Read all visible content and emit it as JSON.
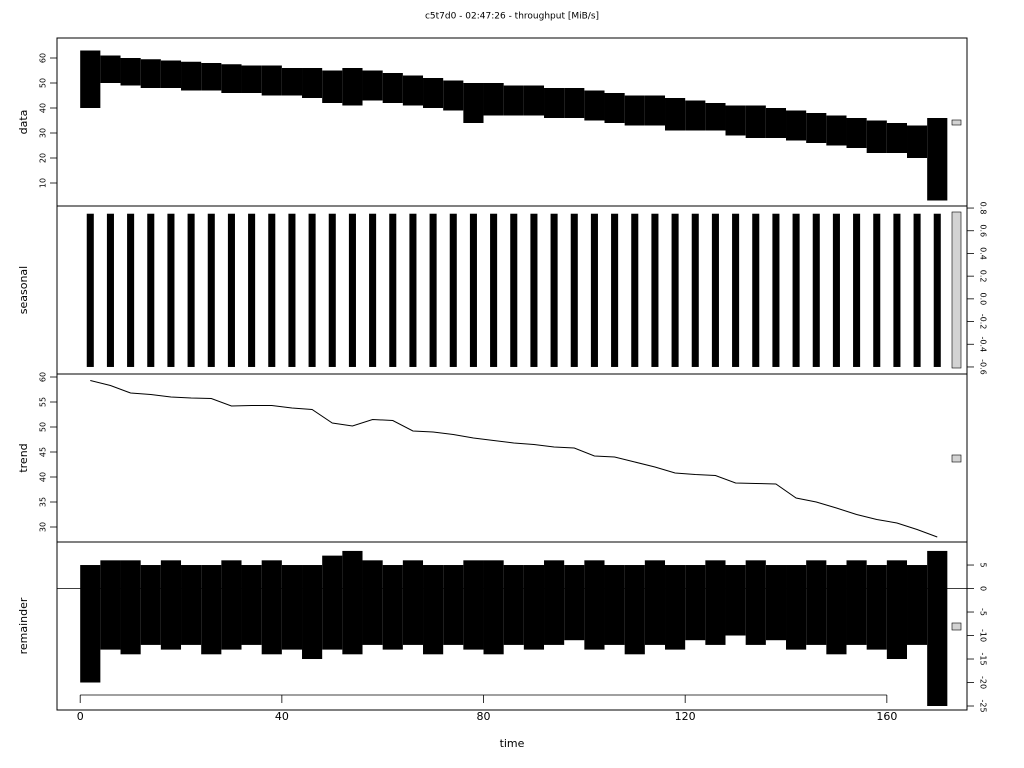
{
  "chart_data": [
    {
      "type": "range",
      "title": "c5t7d0 - 02:47:26 - throughput [MiB/s]",
      "ylabel": "data",
      "yaxis_side": "left",
      "x": [
        2,
        6,
        10,
        14,
        18,
        22,
        26,
        30,
        34,
        38,
        42,
        46,
        50,
        54,
        58,
        62,
        66,
        70,
        74,
        78,
        82,
        86,
        90,
        94,
        98,
        102,
        106,
        110,
        114,
        118,
        122,
        126,
        130,
        134,
        138,
        142,
        146,
        150,
        154,
        158,
        162,
        166,
        170
      ],
      "low": [
        40,
        50,
        49,
        48,
        48,
        47,
        47,
        46,
        46,
        45,
        45,
        44,
        42,
        41,
        43,
        42,
        41,
        40,
        39,
        34,
        37,
        37,
        37,
        36,
        36,
        35,
        34,
        33,
        33,
        31,
        31,
        31,
        29,
        28,
        28,
        27,
        26,
        25,
        24,
        22,
        22,
        20,
        3
      ],
      "high": [
        63,
        61,
        60,
        59.5,
        59,
        58.5,
        58,
        57.5,
        57,
        57,
        56,
        56,
        55,
        56,
        55,
        54,
        53,
        52,
        51,
        50,
        50,
        49,
        49,
        48,
        48,
        47,
        46,
        45,
        45,
        44,
        43,
        42,
        41,
        41,
        40,
        39,
        38,
        37,
        36,
        35,
        34,
        33,
        36
      ],
      "color": "#000000",
      "xlim": [
        -4.6,
        175.9
      ],
      "ylim": [
        0.8,
        68
      ],
      "yticks": [
        10,
        20,
        30,
        40,
        50,
        60
      ]
    },
    {
      "type": "range",
      "ylabel": "seasonal",
      "yaxis_side": "right",
      "x": [
        2,
        6,
        10,
        14,
        18,
        22,
        26,
        30,
        34,
        38,
        42,
        46,
        50,
        54,
        58,
        62,
        66,
        70,
        74,
        78,
        82,
        86,
        90,
        94,
        98,
        102,
        106,
        110,
        114,
        118,
        122,
        126,
        130,
        134,
        138,
        142,
        146,
        150,
        154,
        158,
        162,
        166,
        170
      ],
      "low": [
        -0.6,
        -0.6,
        -0.6,
        -0.6,
        -0.6,
        -0.6,
        -0.6,
        -0.6,
        -0.6,
        -0.6,
        -0.6,
        -0.6,
        -0.6,
        -0.6,
        -0.6,
        -0.6,
        -0.6,
        -0.6,
        -0.6,
        -0.6,
        -0.6,
        -0.6,
        -0.6,
        -0.6,
        -0.6,
        -0.6,
        -0.6,
        -0.6,
        -0.6,
        -0.6,
        -0.6,
        -0.6,
        -0.6,
        -0.6,
        -0.6,
        -0.6,
        -0.6,
        -0.6,
        -0.6,
        -0.6,
        -0.6,
        -0.6,
        -0.6
      ],
      "high": [
        0.75,
        0.75,
        0.75,
        0.75,
        0.75,
        0.75,
        0.75,
        0.75,
        0.75,
        0.75,
        0.75,
        0.75,
        0.75,
        0.75,
        0.75,
        0.75,
        0.75,
        0.75,
        0.75,
        0.75,
        0.75,
        0.75,
        0.75,
        0.75,
        0.75,
        0.75,
        0.75,
        0.75,
        0.75,
        0.75,
        0.75,
        0.75,
        0.75,
        0.75,
        0.75,
        0.75,
        0.75,
        0.75,
        0.75,
        0.75,
        0.75,
        0.75,
        0.75
      ],
      "color": "#000000",
      "xlim": [
        -4.6,
        175.9
      ],
      "ylim": [
        -0.662,
        0.818
      ],
      "yticks": [
        -0.6,
        -0.4,
        -0.2,
        {
          "value": 0,
          "label": "0.0"
        },
        0.2,
        0.4,
        0.6,
        0.8
      ]
    },
    {
      "type": "line",
      "ylabel": "trend",
      "yaxis_side": "left",
      "x": [
        2,
        6,
        10,
        14,
        18,
        22,
        26,
        30,
        34,
        38,
        42,
        46,
        50,
        54,
        58,
        62,
        66,
        70,
        74,
        78,
        82,
        86,
        90,
        94,
        98,
        102,
        106,
        110,
        114,
        118,
        122,
        126,
        130,
        134,
        138,
        142,
        146,
        150,
        154,
        158,
        162,
        166,
        170
      ],
      "values": [
        59.3,
        58.3,
        56.8,
        56.5,
        56,
        55.8,
        55.7,
        54.2,
        54.3,
        54.3,
        53.8,
        53.5,
        50.8,
        50.2,
        51.5,
        51.3,
        49.2,
        49,
        48.5,
        47.8,
        47.3,
        46.8,
        46.5,
        46,
        45.8,
        44.2,
        44,
        43,
        42,
        40.8,
        40.5,
        40.3,
        38.8,
        38.7,
        38.6,
        35.8,
        35,
        33.8,
        32.5,
        31.5,
        30.8,
        29.5,
        28
      ],
      "color": "#000000",
      "xlim": [
        -4.6,
        175.9
      ],
      "ylim": [
        27,
        60.6
      ],
      "yticks": [
        30,
        35,
        40,
        45,
        50,
        55,
        60
      ]
    },
    {
      "type": "range",
      "ylabel": "remainder",
      "xlabel": "time",
      "yaxis_side": "right",
      "x": [
        2,
        6,
        10,
        14,
        18,
        22,
        26,
        30,
        34,
        38,
        42,
        46,
        50,
        54,
        58,
        62,
        66,
        70,
        74,
        78,
        82,
        86,
        90,
        94,
        98,
        102,
        106,
        110,
        114,
        118,
        122,
        126,
        130,
        134,
        138,
        142,
        146,
        150,
        154,
        158,
        162,
        166,
        170
      ],
      "low": [
        -20,
        -13,
        -14,
        -12,
        -13,
        -12,
        -14,
        -13,
        -12,
        -14,
        -13,
        -15,
        -13,
        -14,
        -12,
        -13,
        -12,
        -14,
        -12,
        -13,
        -14,
        -12,
        -13,
        -12,
        -11,
        -13,
        -12,
        -14,
        -12,
        -13,
        -11,
        -12,
        -10,
        -12,
        -11,
        -13,
        -12,
        -14,
        -12,
        -13,
        -15,
        -12,
        -25
      ],
      "high": [
        5,
        6,
        6,
        5,
        6,
        5,
        5,
        6,
        5,
        6,
        5,
        5,
        7,
        8,
        6,
        5,
        6,
        5,
        5,
        6,
        6,
        5,
        5,
        6,
        5,
        6,
        5,
        5,
        6,
        5,
        5,
        6,
        5,
        6,
        5,
        5,
        6,
        5,
        6,
        5,
        6,
        5,
        8
      ],
      "color": "#000000",
      "hline": 0,
      "xlim": [
        -4.6,
        175.9
      ],
      "ylim": [
        -25.85,
        9.9
      ],
      "yticks": [
        -25,
        -20,
        -15,
        -10,
        -5,
        0,
        5
      ],
      "xticks": [
        0,
        40,
        80,
        120,
        160
      ]
    }
  ]
}
